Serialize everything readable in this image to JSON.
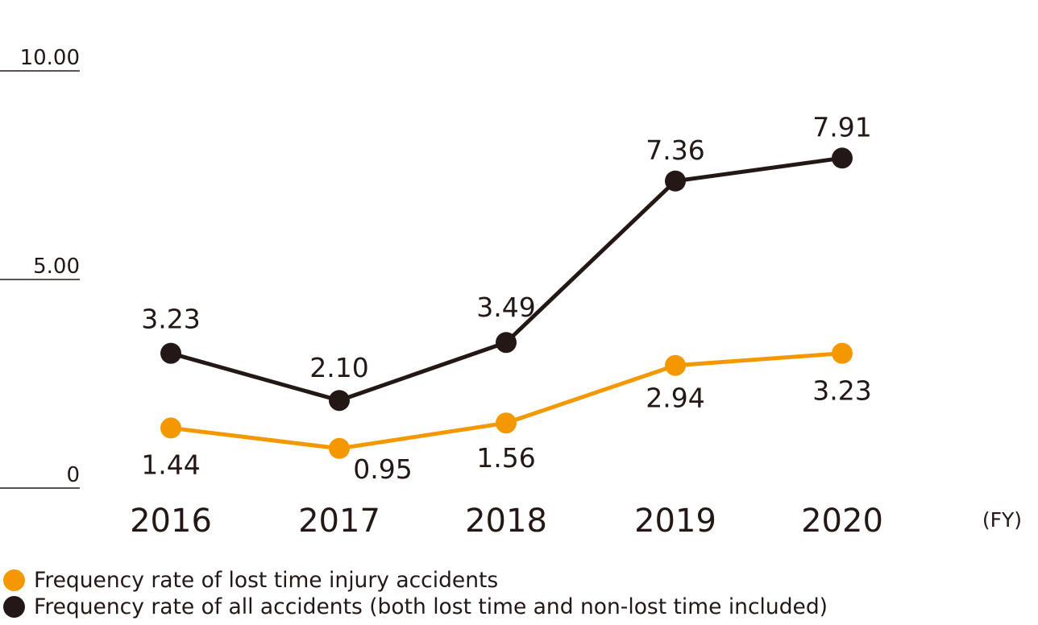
{
  "chart_data": {
    "type": "line",
    "categories": [
      "2016",
      "2017",
      "2018",
      "2019",
      "2020"
    ],
    "x_unit": "(FY)",
    "ylim": [
      0,
      10
    ],
    "yticks": [
      "0",
      "5.00",
      "10.00"
    ],
    "grid": false,
    "legend_position": "bottom-left",
    "series": [
      {
        "name": "Frequency rate of lost time injury accidents",
        "color": "#F39800",
        "values": [
          1.44,
          0.95,
          1.56,
          2.94,
          3.23
        ],
        "labels": [
          "1.44",
          "0.95",
          "1.56",
          "2.94",
          "3.23"
        ]
      },
      {
        "name": "Frequency rate of all accidents (both lost time and non-lost time included)",
        "color": "#231815",
        "values": [
          3.23,
          2.1,
          3.49,
          7.36,
          7.91
        ],
        "labels": [
          "3.23",
          "2.10",
          "3.49",
          "7.36",
          "7.91"
        ]
      }
    ]
  }
}
